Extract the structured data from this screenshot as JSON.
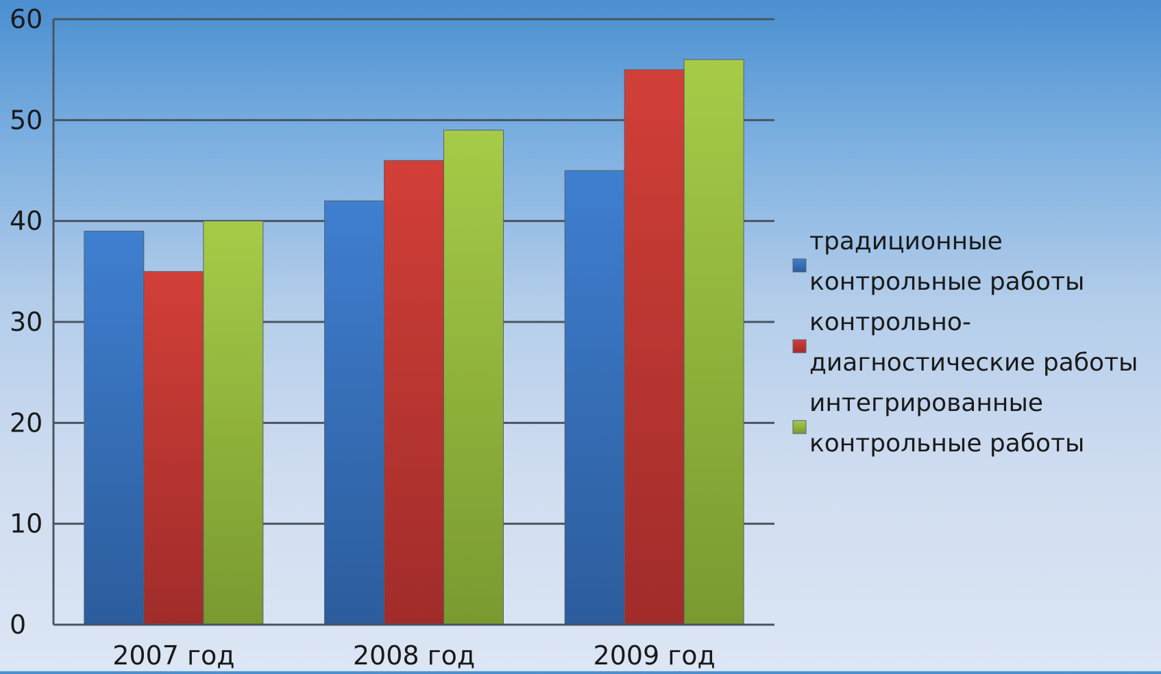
{
  "chart_data": {
    "type": "bar",
    "categories": [
      "2007 год",
      "2008 год",
      "2009 год"
    ],
    "series": [
      {
        "name": "традиционные контрольные работы",
        "legend_lines": [
          "традиционные",
          "контрольные работы"
        ],
        "values": [
          39,
          42,
          45
        ],
        "color": "#3a74c4"
      },
      {
        "name": "контрольно-диагностические работы",
        "legend_lines": [
          "контрольно-",
          "диагностические работы"
        ],
        "values": [
          35,
          46,
          55
        ],
        "color": "#c93a35"
      },
      {
        "name": "интегрированные контрольные работы",
        "legend_lines": [
          "интегрированные",
          "контрольные работы"
        ],
        "values": [
          40,
          49,
          56
        ],
        "color": "#98bd3f"
      }
    ],
    "yticks": [
      0,
      10,
      20,
      30,
      40,
      50,
      60
    ],
    "ylim": [
      0,
      60
    ],
    "grid": true,
    "legend_position": "right",
    "title": "",
    "xlabel": "",
    "ylabel": ""
  }
}
